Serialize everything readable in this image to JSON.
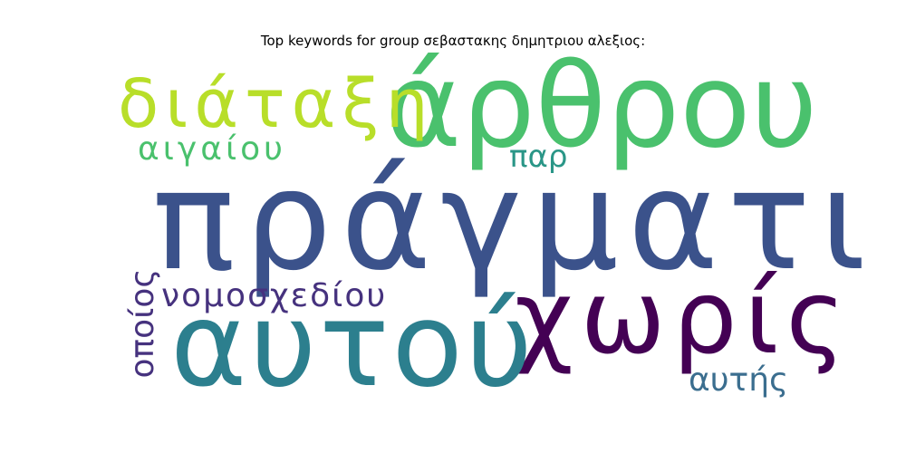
{
  "title": "Top keywords for group σεβαστακης δημητριου αλεξιος:",
  "words": {
    "pragmati": {
      "text": "πράγματι",
      "color": "#3b528b"
    },
    "arthrou": {
      "text": "άρθρου",
      "color": "#4ac16d"
    },
    "diataxi": {
      "text": "διάταξη",
      "color": "#b8de29"
    },
    "xwris": {
      "text": "χωρίς",
      "color": "#440154"
    },
    "autou": {
      "text": "αυτού",
      "color": "#2c7f8e"
    },
    "aigaiou": {
      "text": "αιγαίου",
      "color": "#4ac16d"
    },
    "par": {
      "text": "παρ",
      "color": "#2a9687"
    },
    "nomosxediou": {
      "text": "νομοσχεδίου",
      "color": "#46327e"
    },
    "autis": {
      "text": "αυτής",
      "color": "#3b6e8f"
    },
    "opoios": {
      "text": "οποίος",
      "color": "#46327e"
    }
  }
}
